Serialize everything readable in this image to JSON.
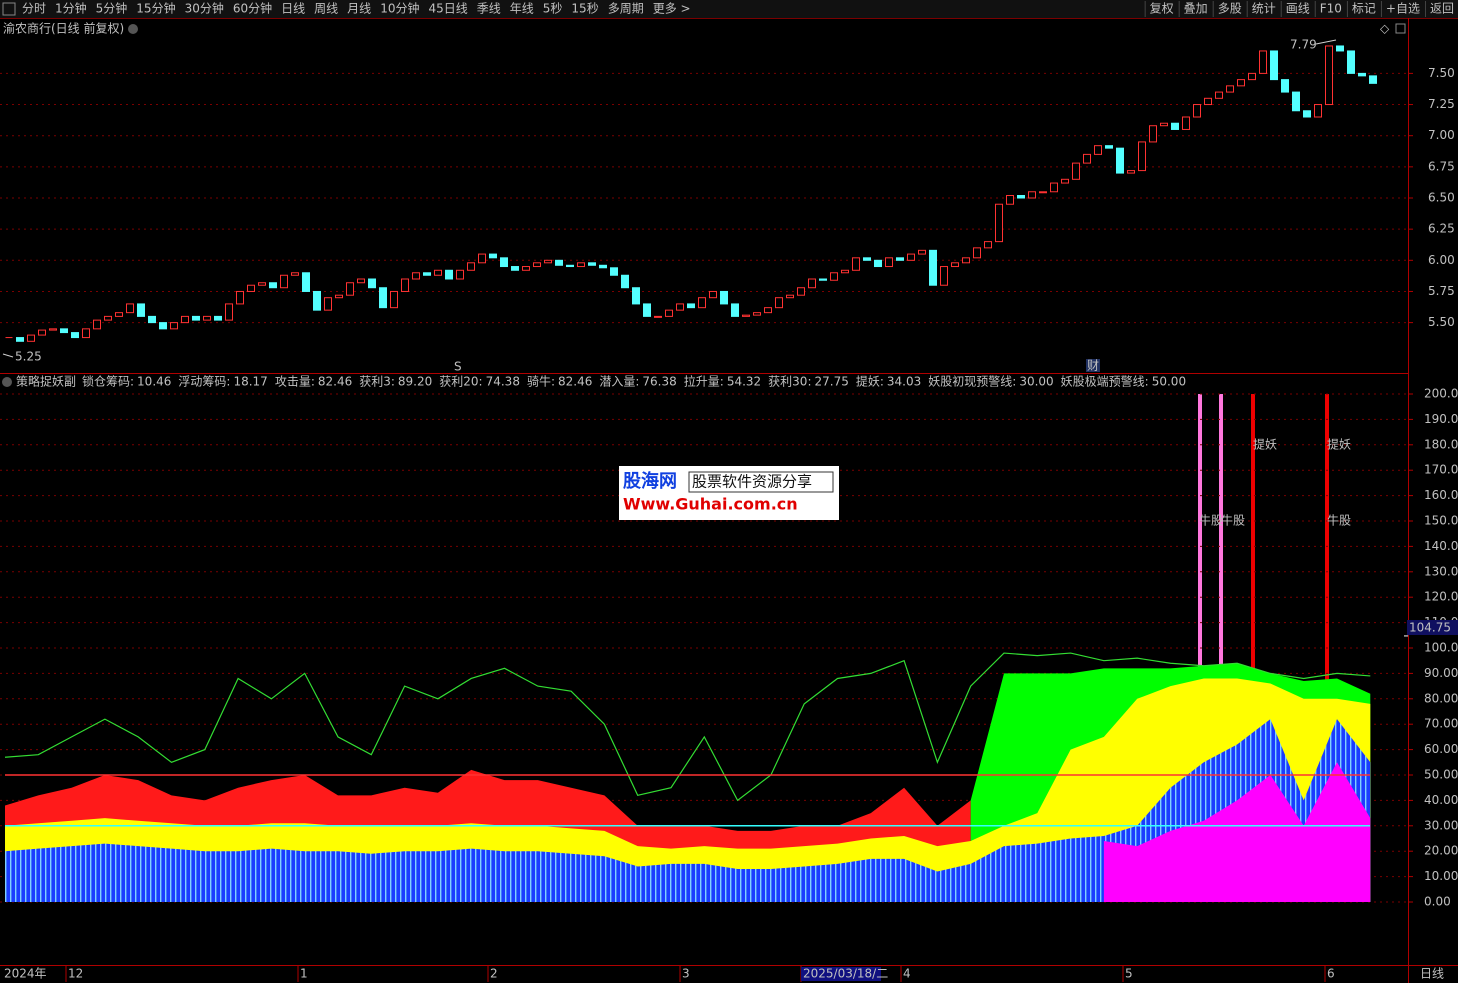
{
  "toolbar": {
    "left": [
      "分时",
      "1分钟",
      "5分钟",
      "15分钟",
      "30分钟",
      "60分钟",
      "日线",
      "周线",
      "月线",
      "10分钟",
      "45日线",
      "季线",
      "年线",
      "5秒",
      "15秒",
      "多周期",
      "更多 >"
    ],
    "right": [
      "复权",
      "叠加",
      "多股",
      "统计",
      "画线",
      "F10",
      "标记",
      "+自选",
      "返回"
    ]
  },
  "price_chart": {
    "type": "candlestick",
    "title": "渝农商行(日线 前复权)",
    "closes": [
      5.38,
      5.35,
      5.4,
      5.44,
      5.45,
      5.42,
      5.38,
      5.45,
      5.52,
      5.55,
      5.58,
      5.65,
      5.55,
      5.5,
      5.45,
      5.5,
      5.55,
      5.52,
      5.55,
      5.52,
      5.65,
      5.75,
      5.8,
      5.82,
      5.78,
      5.88,
      5.9,
      5.75,
      5.6,
      5.7,
      5.72,
      5.82,
      5.85,
      5.78,
      5.62,
      5.75,
      5.85,
      5.9,
      5.88,
      5.92,
      5.85,
      5.92,
      5.98,
      6.05,
      6.02,
      5.95,
      5.92,
      5.95,
      5.98,
      6.0,
      5.96,
      5.95,
      5.98,
      5.96,
      5.94,
      5.88,
      5.78,
      5.65,
      5.55,
      5.55,
      5.6,
      5.65,
      5.62,
      5.7,
      5.75,
      5.65,
      5.55,
      5.56,
      5.58,
      5.62,
      5.7,
      5.72,
      5.78,
      5.85,
      5.84,
      5.9,
      5.92,
      6.02,
      6.0,
      5.95,
      6.02,
      6.0,
      6.05,
      6.08,
      5.8,
      5.95,
      5.98,
      6.02,
      6.1,
      6.15,
      6.45,
      6.52,
      6.5,
      6.55,
      6.55,
      6.62,
      6.65,
      6.78,
      6.85,
      6.92,
      6.9,
      6.7,
      6.72,
      6.95,
      7.08,
      7.1,
      7.05,
      7.15,
      7.25,
      7.3,
      7.35,
      7.4,
      7.45,
      7.5,
      7.68,
      7.45,
      7.35,
      7.2,
      7.15,
      7.25,
      7.72,
      7.68,
      7.5,
      7.48,
      7.42
    ],
    "up_color": "#ff3232",
    "down_color": "#54ffff",
    "ylim": [
      5.2,
      7.8
    ],
    "yticks": [
      {
        "value": 7.5,
        "label": "7.50"
      },
      {
        "value": 7.25,
        "label": "7.25"
      },
      {
        "value": 7,
        "label": "7.00"
      },
      {
        "value": 6.75,
        "label": "6.75"
      },
      {
        "value": 6.5,
        "label": "6.50"
      },
      {
        "value": 6.25,
        "label": "6.25"
      },
      {
        "value": 6,
        "label": "6.00"
      },
      {
        "value": 5.75,
        "label": "5.75"
      },
      {
        "value": 5.5,
        "label": "5.50"
      }
    ],
    "grid": true,
    "annotations": {
      "high": "7.79",
      "low": "5.25",
      "s_marker": "S",
      "fin_marker": "财"
    }
  },
  "indicator": {
    "type": "area",
    "title": "策略捉妖副",
    "legend": [
      {
        "name": "锁仓筹码:",
        "value": 10.46,
        "color": "#a070ff"
      },
      {
        "name": "浮动筹码:",
        "value": 18.17,
        "color": "#33ff33"
      },
      {
        "name": "攻击量:",
        "value": 82.46,
        "color": "#ff3232"
      },
      {
        "name": "获利3:",
        "value": 89.2,
        "label": "89.20",
        "color": "#33ff33"
      },
      {
        "name": "获利20:",
        "value": 74.38,
        "color": "#e0e0e0"
      },
      {
        "name": "骑牛:",
        "value": 82.46,
        "color": "#33ff33"
      },
      {
        "name": "潜入量:",
        "value": 76.38,
        "color": "#ffff33"
      },
      {
        "name": "拉升量:",
        "value": 54.32,
        "color": "#3050ff"
      },
      {
        "name": "获利30:",
        "value": 27.75,
        "color": "#ff33ff"
      },
      {
        "name": "提妖:",
        "value": 34.03,
        "color": "#ff33ff"
      },
      {
        "name": "妖股初现预警线:",
        "value": 30,
        "label": "30.00",
        "color": "#33ffff"
      },
      {
        "name": "妖股极端预警线:",
        "value": 50,
        "label": "50.00",
        "color": "#ff3232"
      }
    ],
    "series": [
      {
        "color": "#ff1a1a",
        "values": [
          38,
          42,
          45,
          50,
          48,
          42,
          40,
          45,
          48,
          50,
          42,
          42,
          45,
          43,
          52,
          48,
          48,
          45,
          42,
          30,
          30,
          30,
          28,
          28,
          30,
          30,
          35,
          45,
          30,
          40,
          null,
          null,
          null,
          null,
          null,
          null,
          null,
          null,
          null,
          null,
          null,
          null
        ]
      },
      {
        "color": "#00ff00",
        "values": [
          null,
          null,
          null,
          null,
          null,
          null,
          null,
          null,
          null,
          null,
          null,
          null,
          null,
          null,
          null,
          null,
          null,
          null,
          null,
          null,
          null,
          null,
          null,
          null,
          null,
          null,
          null,
          null,
          null,
          40,
          90,
          90,
          90,
          92,
          92,
          92,
          93,
          94,
          90,
          87,
          88,
          82
        ]
      },
      {
        "color": "#ffff00",
        "values": [
          30,
          31,
          32,
          33,
          32,
          31,
          30,
          30,
          31,
          31,
          30,
          30,
          30,
          30,
          31,
          30,
          30,
          29,
          28,
          22,
          21,
          22,
          21,
          21,
          22,
          23,
          25,
          26,
          22,
          24,
          30,
          35,
          60,
          65,
          80,
          85,
          88,
          88,
          86,
          80,
          80,
          78
        ]
      },
      {
        "color": "#1a3cff",
        "values": [
          20,
          21,
          22,
          23,
          22,
          21,
          20,
          20,
          21,
          20,
          20,
          19,
          20,
          20,
          21,
          20,
          20,
          19,
          18,
          14,
          15,
          15,
          13,
          13,
          14,
          15,
          17,
          17,
          12,
          15,
          22,
          23,
          25,
          26,
          30,
          45,
          55,
          62,
          72,
          40,
          72,
          55
        ]
      },
      {
        "color": "#ff00ff",
        "values": [
          null,
          null,
          null,
          null,
          null,
          null,
          null,
          null,
          null,
          null,
          null,
          null,
          null,
          null,
          null,
          null,
          null,
          null,
          null,
          null,
          null,
          null,
          null,
          null,
          null,
          null,
          null,
          null,
          null,
          null,
          null,
          null,
          null,
          24,
          22,
          28,
          32,
          40,
          50,
          30,
          55,
          33
        ]
      },
      {
        "color": "#33dd33",
        "line": true,
        "values": [
          57,
          58,
          65,
          72,
          65,
          55,
          60,
          88,
          80,
          90,
          65,
          58,
          85,
          80,
          88,
          92,
          85,
          83,
          70,
          42,
          45,
          65,
          40,
          50,
          78,
          88,
          90,
          95,
          55,
          85,
          98,
          97,
          98,
          95,
          96,
          94,
          93,
          94,
          90,
          88,
          90,
          89
        ]
      }
    ],
    "ylim": [
      0,
      200
    ],
    "yticks": [
      {
        "value": 200,
        "label": "200.0"
      },
      {
        "value": 190,
        "label": "190.0"
      },
      {
        "value": 180,
        "label": "180.0"
      },
      {
        "value": 170,
        "label": "170.0"
      },
      {
        "value": 160,
        "label": "160.0"
      },
      {
        "value": 150,
        "label": "150.0"
      },
      {
        "value": 140,
        "label": "140.0"
      },
      {
        "value": 130,
        "label": "130.0"
      },
      {
        "value": 120,
        "label": "120.0"
      },
      {
        "value": 110,
        "label": "110.0"
      },
      {
        "value": 100,
        "label": "100.0"
      },
      {
        "value": 90,
        "label": "90.00"
      },
      {
        "value": 80,
        "label": "80.00"
      },
      {
        "value": 70,
        "label": "70.00"
      },
      {
        "value": 60,
        "label": "60.00"
      },
      {
        "value": 50,
        "label": "50.00"
      },
      {
        "value": 40,
        "label": "40.00"
      },
      {
        "value": 30,
        "label": "30.00"
      },
      {
        "value": 20,
        "label": "20.00"
      },
      {
        "value": 10,
        "label": "10.00"
      },
      {
        "value": 0,
        "label": "0.00"
      }
    ],
    "grid": true,
    "signals": [
      "牛股",
      "牛股",
      "提妖",
      "提妖",
      "牛股"
    ],
    "cursor_value": 104.75
  },
  "x_axis": {
    "labels": [
      "2024年",
      "12",
      "1",
      "2",
      "3",
      "2025/03/18/二",
      "4",
      "5",
      "6"
    ],
    "period": "日线"
  },
  "watermark": {
    "brand": "股海网",
    "slogan": "股票软件资源分享",
    "url": "Www.Guhai.com.cn"
  }
}
